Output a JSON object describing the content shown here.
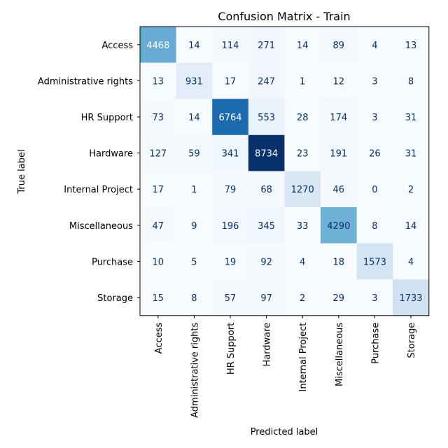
{
  "chart_data": {
    "type": "heatmap",
    "title": "Confusion Matrix - Train",
    "xlabel": "Predicted label",
    "ylabel": "True label",
    "row_labels": [
      "Access",
      "Administrative rights",
      "HR Support",
      "Hardware",
      "Internal Project",
      "Miscellaneous",
      "Purchase",
      "Storage"
    ],
    "col_labels": [
      "Access",
      "Administrative rights",
      "HR Support",
      "Hardware",
      "Internal Project",
      "Miscellaneous",
      "Purchase",
      "Storage"
    ],
    "values": [
      [
        4468,
        14,
        114,
        271,
        14,
        89,
        4,
        13
      ],
      [
        13,
        931,
        17,
        247,
        1,
        12,
        3,
        8
      ],
      [
        73,
        14,
        6764,
        553,
        28,
        174,
        3,
        31
      ],
      [
        127,
        59,
        341,
        8734,
        23,
        191,
        26,
        31
      ],
      [
        17,
        1,
        79,
        68,
        1270,
        46,
        0,
        2
      ],
      [
        47,
        9,
        196,
        345,
        33,
        4290,
        8,
        14
      ],
      [
        10,
        5,
        19,
        92,
        4,
        18,
        1573,
        4
      ],
      [
        15,
        8,
        57,
        97,
        2,
        29,
        3,
        1733
      ]
    ],
    "colormap": "Blues",
    "text_colors": {
      "dark": "#08306b",
      "light": "#ffffff"
    }
  }
}
